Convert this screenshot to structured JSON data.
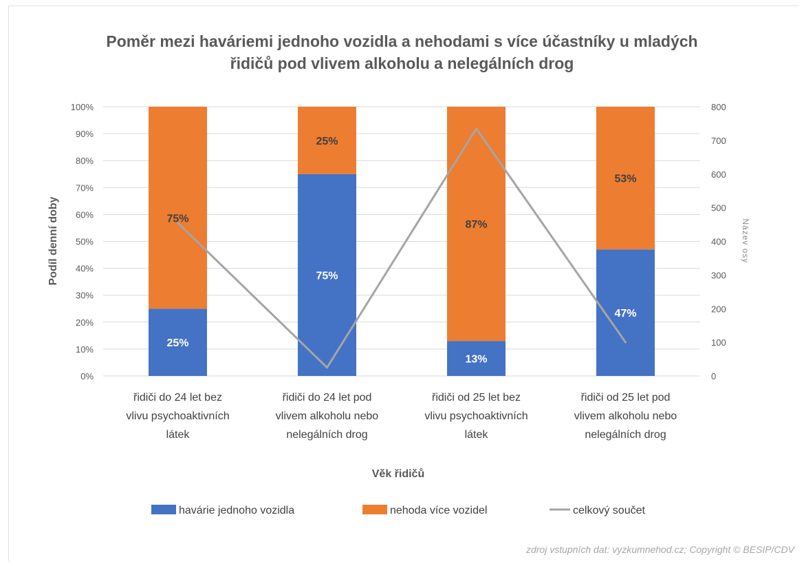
{
  "chart_data": {
    "type": "bar",
    "stacked": true,
    "title": "Poměr mezi haváriemi jednoho vozidla a nehodami s více účastníky u mladých řidičů pod vlivem alkoholu a nelegálních drog",
    "title_lines": [
      "Poměr mezi haváriemi jednoho vozidla a nehodami s více účastníky u mladých",
      "řidičů pod vlivem alkoholu a nelegálních drog"
    ],
    "xlabel": "Věk řidičů",
    "ylabel": "Podíl denní doby",
    "y2label": "Název osy",
    "ylim": [
      0,
      100
    ],
    "y2lim": [
      0,
      800
    ],
    "y_ticks": [
      "0%",
      "10%",
      "20%",
      "30%",
      "40%",
      "50%",
      "60%",
      "70%",
      "80%",
      "90%",
      "100%"
    ],
    "y2_ticks": [
      "0",
      "100",
      "200",
      "300",
      "400",
      "500",
      "600",
      "700",
      "800"
    ],
    "categories": [
      [
        "řidiči do 24 let bez",
        "vlivu psychoaktivních",
        "látek"
      ],
      [
        "řidiči do 24 let pod",
        "vlivem alkoholu nebo",
        "nelegálních drog"
      ],
      [
        "řidiči od 25 let bez",
        "vlivu psychoaktivních",
        "látek"
      ],
      [
        "řidiči od 25 let pod",
        "vlivem alkoholu nebo",
        "nelegálních drog"
      ]
    ],
    "series": [
      {
        "name": "havárie jednoho vozidla",
        "color": "#4472c4",
        "axis": "left",
        "values": [
          25,
          75,
          13,
          47
        ],
        "labels": [
          "25%",
          "75%",
          "13%",
          "47%"
        ]
      },
      {
        "name": "nehoda více vozidel",
        "color": "#ed7d31",
        "axis": "left",
        "values": [
          75,
          25,
          87,
          53
        ],
        "labels": [
          "75%",
          "25%",
          "87%",
          "53%"
        ]
      },
      {
        "name": "celkový součet",
        "color": "#a5a5a5",
        "axis": "right",
        "type": "line",
        "values": [
          455,
          25,
          735,
          100
        ]
      }
    ],
    "grid": true,
    "legend_position": "bottom"
  },
  "source_note": "zdroj vstupních dat: vyzkumnehod.cz; Copyright © BESIP/CDV"
}
